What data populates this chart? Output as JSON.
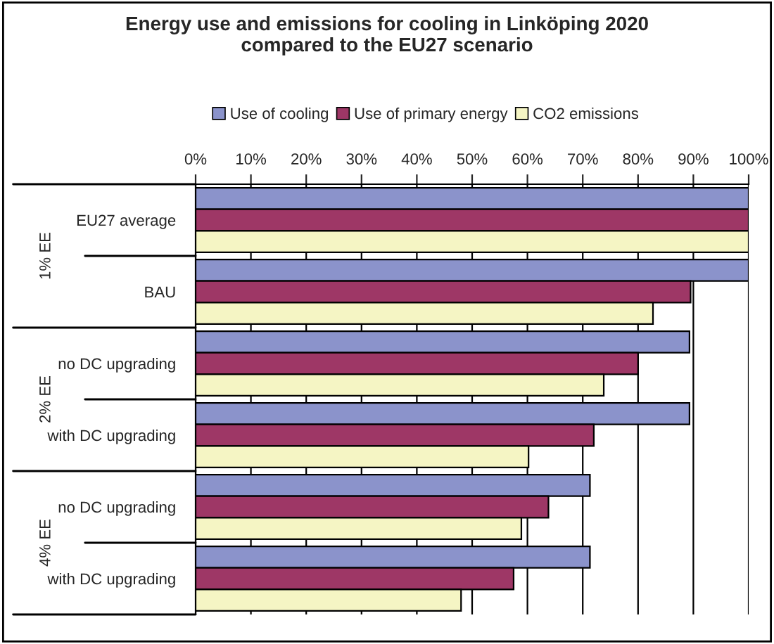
{
  "chart_data": {
    "type": "bar",
    "orientation": "horizontal",
    "title": "Energy use and emissions for cooling in Linköping 2020\ncompared to the EU27 scenario",
    "categories": [
      "EU27 average",
      "BAU",
      "no DC upgrading",
      "with DC upgrading",
      "no DC upgrading",
      "with DC upgrading"
    ],
    "series": [
      {
        "name": "Use of cooling",
        "color": "#8b93cb",
        "values": [
          100,
          100,
          89.3,
          89.3,
          71.3,
          71.3
        ]
      },
      {
        "name": "Use of primary energy",
        "color": "#9e3766",
        "values": [
          100,
          89.5,
          80,
          72,
          63.8,
          57.5
        ]
      },
      {
        "name": "CO2 emissions",
        "color": "#f5f5c4",
        "values": [
          100,
          82.7,
          73.8,
          60.2,
          58.9,
          48
        ]
      }
    ],
    "annotations": [
      "1% EE",
      "2% EE",
      "4% EE"
    ],
    "xlim": [
      0,
      100
    ],
    "xticks": [
      {
        "value": 0,
        "label": "0%"
      },
      {
        "value": 10,
        "label": "10%"
      },
      {
        "value": 20,
        "label": "20%"
      },
      {
        "value": 30,
        "label": "30%"
      },
      {
        "value": 40,
        "label": "40%"
      },
      {
        "value": 50,
        "label": "50%"
      },
      {
        "value": 60,
        "label": "60%"
      },
      {
        "value": 70,
        "label": "70%"
      },
      {
        "value": 80,
        "label": "80%"
      },
      {
        "value": 90,
        "label": "90%"
      },
      {
        "value": 100,
        "label": "100%"
      }
    ],
    "grid": "x",
    "legend": "top"
  }
}
